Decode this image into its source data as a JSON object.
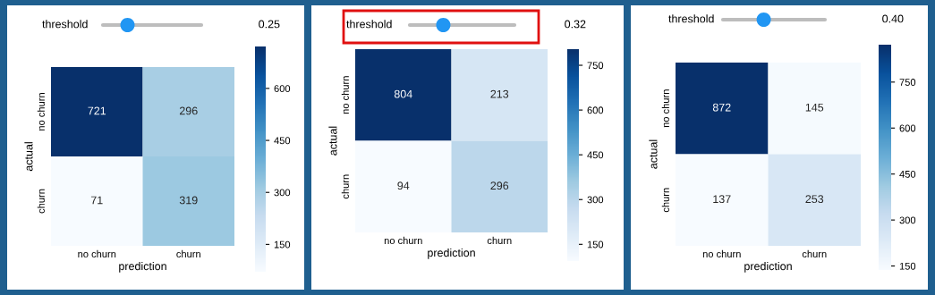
{
  "chart_data": [
    {
      "type": "heatmap",
      "annotations": [
        "threshold",
        "0.25"
      ],
      "categories": [
        "no churn",
        "churn"
      ],
      "y_categories": [
        "no churn",
        "churn"
      ],
      "xlabel": "prediction",
      "ylabel": "actual",
      "cells": [
        [
          721,
          296
        ],
        [
          71,
          319
        ]
      ],
      "clim": [
        71,
        721
      ],
      "cticks": [
        150,
        300,
        450,
        600
      ],
      "data_labels": true
    },
    {
      "type": "heatmap",
      "annotations": [
        "threshold",
        "0.32"
      ],
      "categories": [
        "no churn",
        "churn"
      ],
      "y_categories": [
        "no churn",
        "churn"
      ],
      "xlabel": "prediction",
      "ylabel": "actual",
      "cells": [
        [
          804,
          213
        ],
        [
          94,
          296
        ]
      ],
      "clim": [
        94,
        804
      ],
      "cticks": [
        150,
        300,
        450,
        600,
        750
      ],
      "data_labels": true
    },
    {
      "type": "heatmap",
      "annotations": [
        "threshold",
        "0.40"
      ],
      "categories": [
        "no churn",
        "churn"
      ],
      "y_categories": [
        "no churn",
        "churn"
      ],
      "xlabel": "prediction",
      "ylabel": "actual",
      "cells": [
        [
          872,
          145
        ],
        [
          137,
          253
        ]
      ],
      "clim": [
        137,
        872
      ],
      "cticks": [
        150,
        300,
        450,
        600,
        750
      ],
      "data_labels": true
    }
  ]
}
